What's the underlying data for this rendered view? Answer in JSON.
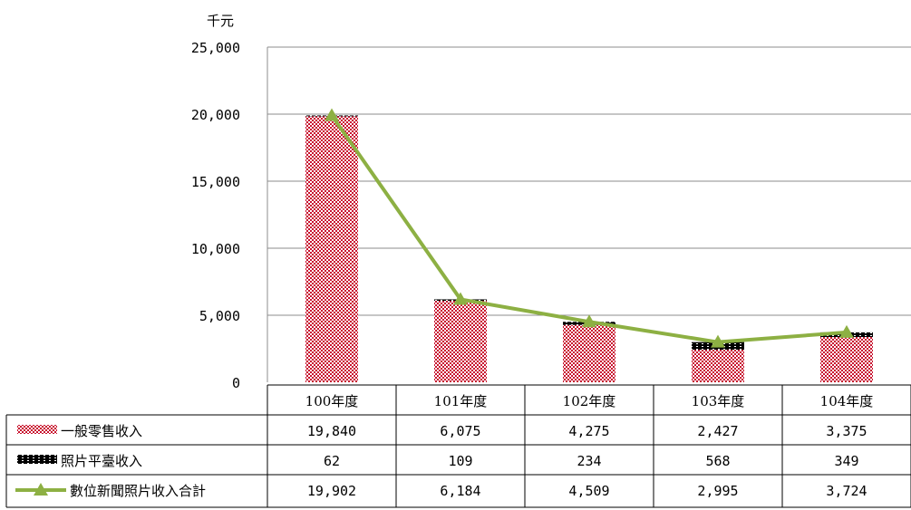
{
  "chart_data": {
    "type": "bar",
    "y_unit": "千元",
    "categories": [
      "100年度",
      "101年度",
      "102年度",
      "103年度",
      "104年度"
    ],
    "ylim": [
      0,
      25000
    ],
    "yticks": [
      "0",
      "5,000",
      "10,000",
      "15,000",
      "20,000",
      "25,000"
    ],
    "ytick_values": [
      0,
      5000,
      10000,
      15000,
      20000,
      25000
    ],
    "grid": true,
    "stacked": true,
    "series": [
      {
        "name": "一般零售收入",
        "kind": "bar",
        "pattern": "red-checker",
        "color": "#c8102e",
        "values": [
          19840,
          6075,
          4275,
          2427,
          3375
        ],
        "labels": [
          "19,840",
          "6,075",
          "4,275",
          "2,427",
          "3,375"
        ]
      },
      {
        "name": "照片平臺收入",
        "kind": "bar",
        "pattern": "black-dash",
        "color": "#000000",
        "values": [
          62,
          109,
          234,
          568,
          349
        ],
        "labels": [
          "62",
          "109",
          "234",
          "568",
          "349"
        ]
      },
      {
        "name": "數位新聞照片收入合計",
        "kind": "line",
        "marker": "triangle",
        "color": "#8db043",
        "values": [
          19902,
          6184,
          4509,
          2995,
          3724
        ],
        "labels": [
          "19,902",
          "6,184",
          "4,509",
          "2,995",
          "3,724"
        ]
      }
    ],
    "legend_placement": "data-table-left"
  }
}
